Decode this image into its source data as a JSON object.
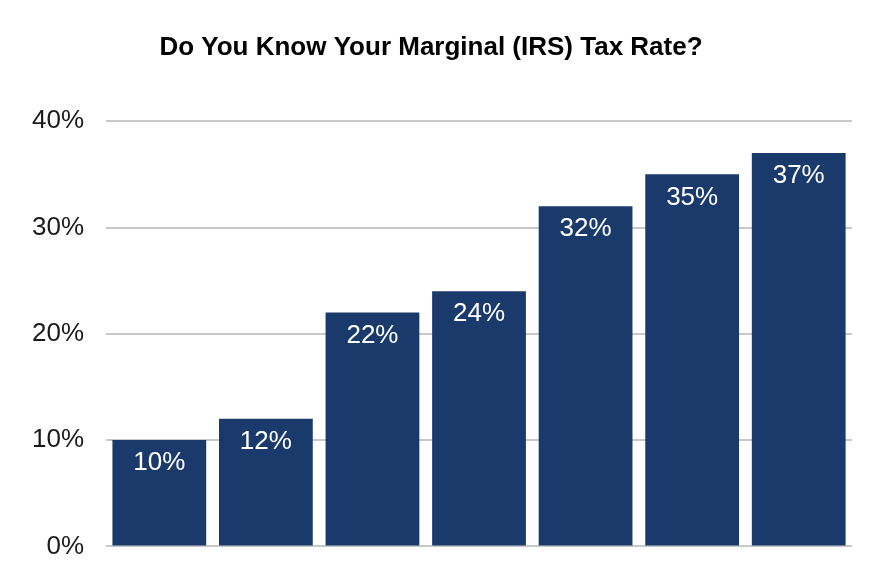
{
  "chart_data": {
    "type": "bar",
    "title": "Do You Know Your Marginal (IRS) Tax Rate?",
    "categories": [
      null,
      null,
      null,
      null,
      null,
      null,
      null
    ],
    "values": [
      10,
      12,
      22,
      24,
      32,
      35,
      37
    ],
    "value_labels": [
      "10%",
      "12%",
      "22%",
      "24%",
      "32%",
      "35%",
      "37%"
    ],
    "data_labels": true,
    "color": "#1b3a6c",
    "ylim": [
      0,
      40
    ],
    "yticks": [
      {
        "value": 0,
        "label": "0%"
      },
      {
        "value": 10,
        "label": "10%"
      },
      {
        "value": 20,
        "label": "20%"
      },
      {
        "value": 30,
        "label": "30%"
      },
      {
        "value": 40,
        "label": "40%"
      }
    ],
    "grid": true,
    "tick_labels": "y"
  }
}
